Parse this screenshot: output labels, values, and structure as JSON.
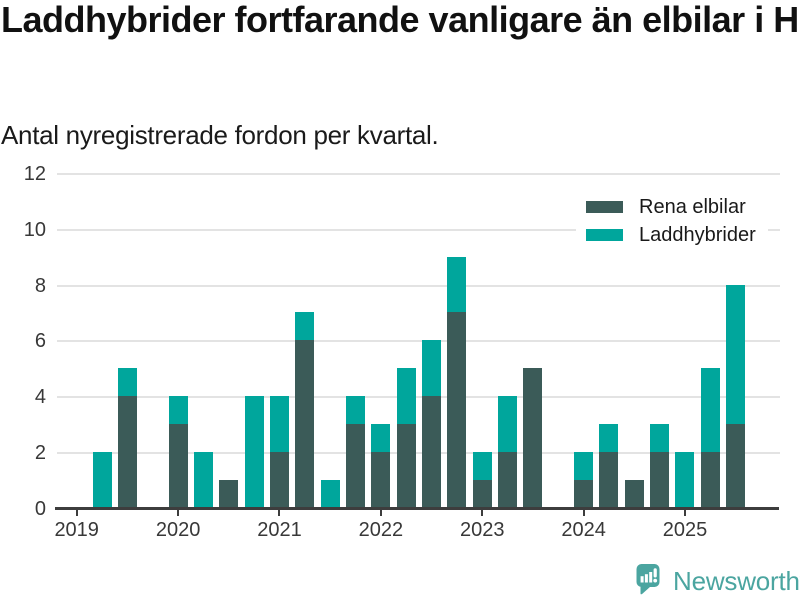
{
  "chart_data": {
    "type": "bar",
    "stacked": true,
    "title": "Laddhybrider fortfarande vanligare än elbilar i Högsby",
    "subtitle": "Antal nyregistrerade fordon per kvartal.",
    "categories": [
      "2019 kv1",
      "2019 kv2",
      "2019 kv3",
      "2019 kv4",
      "2020 kv1",
      "2020 kv2",
      "2020 kv3",
      "2020 kv4",
      "2021 kv1",
      "2021 kv2",
      "2021 kv3",
      "2021 kv4",
      "2022 kv1",
      "2022 kv2",
      "2022 kv3",
      "2022 kv4",
      "2023 kv1",
      "2023 kv2",
      "2023 kv3",
      "2023 kv4",
      "2024 kv1",
      "2024 kv2",
      "2024 kv3",
      "2024 kv4",
      "2025 kv1",
      "2025 kv2",
      "2025 kv3"
    ],
    "series": [
      {
        "name": "Rena elbilar",
        "color": "#3b5b58",
        "values": [
          0,
          0,
          4,
          0,
          3,
          0,
          1,
          0,
          2,
          6,
          0,
          3,
          2,
          3,
          4,
          7,
          1,
          2,
          5,
          0,
          1,
          2,
          1,
          2,
          0,
          2,
          3
        ]
      },
      {
        "name": "Laddhybrider",
        "color": "#00a69c",
        "values": [
          0,
          2,
          1,
          0,
          1,
          2,
          0,
          4,
          2,
          1,
          1,
          1,
          1,
          2,
          2,
          2,
          1,
          2,
          0,
          0,
          1,
          1,
          0,
          1,
          2,
          3,
          5
        ]
      }
    ],
    "x_tick_labels": [
      "2019",
      "2020",
      "2021",
      "2022",
      "2023",
      "2024",
      "2025"
    ],
    "y_ticks": [
      0,
      2,
      4,
      6,
      8,
      10,
      12
    ],
    "ylim": [
      0,
      12
    ],
    "grid": "horizontal",
    "legend_position": "top-right"
  },
  "colors": {
    "axis": "#3d3d3d",
    "gridline": "#e3e3e3",
    "axis_text": "#383838",
    "title_text": "#111111"
  },
  "footer": {
    "brand": "Newsworthy",
    "brand_color": "#4ba5a0",
    "logo_icon": "newsworthy-speech-bubble-barchart-icon"
  }
}
